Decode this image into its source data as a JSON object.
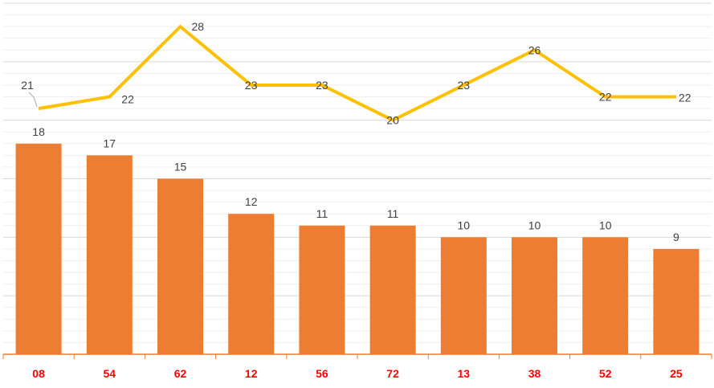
{
  "chart_data": {
    "type": "bar",
    "categories": [
      "08",
      "54",
      "62",
      "12",
      "56",
      "72",
      "13",
      "38",
      "52",
      "25"
    ],
    "series": [
      {
        "type": "bar",
        "values": [
          18,
          17,
          15,
          12,
          11,
          11,
          10,
          10,
          10,
          9
        ],
        "color": "#ED7D31"
      },
      {
        "type": "line",
        "values": [
          21,
          22,
          28,
          23,
          23,
          20,
          23,
          26,
          22,
          22
        ],
        "color": "#FFC000"
      }
    ],
    "ylim": [
      0,
      30
    ],
    "grid": true,
    "tick_label_color": "#FF0000",
    "axis_color": "#ED7D31",
    "gridline_color": "#D9D9D9"
  }
}
